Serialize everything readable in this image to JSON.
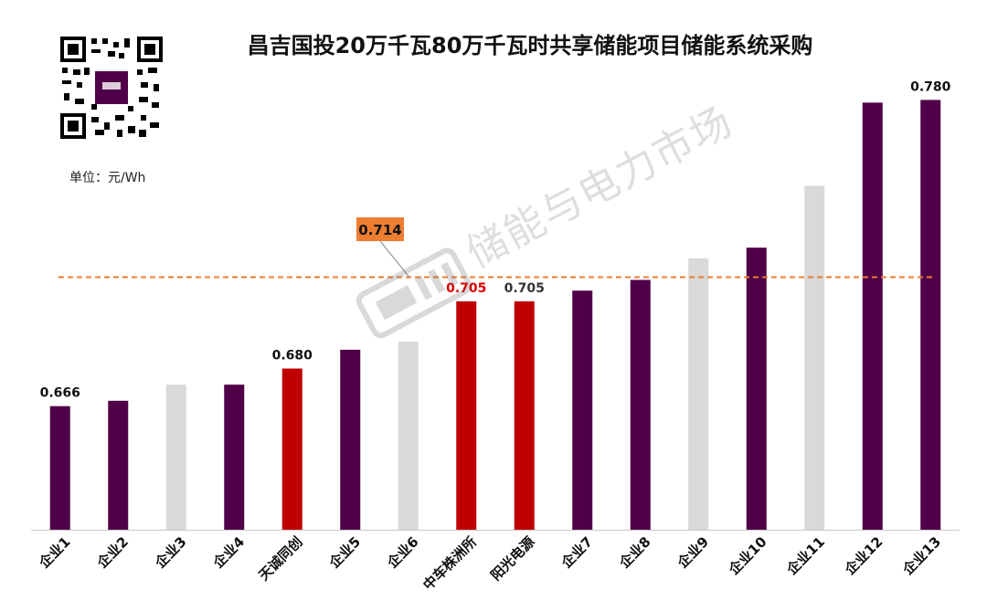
{
  "title": "昌吉国投20万千瓦80万千瓦时共享储能项目储能系统采购",
  "unit_label": "单位：元/Wh",
  "watermark_text": "储能与电力市场",
  "colors": {
    "purple": "#4f0048",
    "red": "#c00000",
    "gray": "#d9d9d9",
    "avg_line": "#ed7d31",
    "avg_box": "#ed7d31"
  },
  "chart_data": {
    "type": "bar",
    "title": "昌吉国投20万千瓦80万千瓦时共享储能项目储能系统采购",
    "ylabel": "元/Wh",
    "ylim": [
      0.62,
      0.79
    ],
    "average": 0.714,
    "average_label": "0.714",
    "categories": [
      "企业1",
      "企业2",
      "企业3",
      "企业4",
      "天诚同创",
      "企业5",
      "企业6",
      "中车株洲所",
      "阳光电源",
      "企业7",
      "企业8",
      "企业9",
      "企业10",
      "企业11",
      "企业12",
      "企业13"
    ],
    "values": [
      0.666,
      0.668,
      0.674,
      0.674,
      0.68,
      0.687,
      0.69,
      0.705,
      0.705,
      0.709,
      0.713,
      0.721,
      0.725,
      0.748,
      0.779,
      0.78
    ],
    "bar_colors": [
      "purple",
      "purple",
      "gray",
      "purple",
      "red",
      "purple",
      "gray",
      "red",
      "red",
      "purple",
      "purple",
      "gray",
      "purple",
      "gray",
      "purple",
      "purple"
    ],
    "data_labels": [
      {
        "index": 0,
        "text": "0.666",
        "color": "#111111"
      },
      {
        "index": 4,
        "text": "0.680",
        "color": "#111111"
      },
      {
        "index": 7,
        "text": "0.705",
        "color": "#e00000"
      },
      {
        "index": 8,
        "text": "0.705",
        "color": "#333333"
      },
      {
        "index": 15,
        "text": "0.780",
        "color": "#111111"
      }
    ]
  }
}
